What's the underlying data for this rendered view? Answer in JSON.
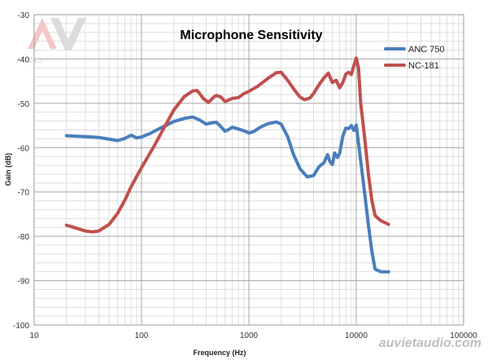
{
  "chart_data": {
    "type": "line",
    "title": "Microphone Sensitivity",
    "xlabel": "Frequency (Hz)",
    "ylabel": "Gain (dB)",
    "xscale": "log",
    "xlim": [
      10,
      100000
    ],
    "ylim": [
      -100,
      -30
    ],
    "xticks": [
      10,
      100,
      1000,
      10000,
      100000
    ],
    "xtick_labels": [
      "10",
      "100",
      "1000",
      "10000",
      "100000"
    ],
    "yticks": [
      -30,
      -40,
      -50,
      -60,
      -70,
      -80,
      -90,
      -100
    ],
    "ytick_labels": [
      "-30",
      "-40",
      "-50",
      "-60",
      "-70",
      "-80",
      "-90",
      "-100"
    ],
    "grid": true,
    "legend_position": "top-right",
    "series": [
      {
        "name": "ANC 750",
        "color": "#4a7ebb",
        "points": [
          [
            20,
            -57.3
          ],
          [
            30,
            -57.5
          ],
          [
            40,
            -57.7
          ],
          [
            50,
            -58.1
          ],
          [
            60,
            -58.4
          ],
          [
            70,
            -57.9
          ],
          [
            80,
            -57.2
          ],
          [
            90,
            -57.8
          ],
          [
            100,
            -57.6
          ],
          [
            120,
            -56.8
          ],
          [
            150,
            -55.6
          ],
          [
            200,
            -54.1
          ],
          [
            250,
            -53.4
          ],
          [
            300,
            -53.1
          ],
          [
            350,
            -53.8
          ],
          [
            400,
            -54.7
          ],
          [
            450,
            -54.4
          ],
          [
            500,
            -54.3
          ],
          [
            550,
            -55.3
          ],
          [
            600,
            -56.3
          ],
          [
            650,
            -55.9
          ],
          [
            700,
            -55.4
          ],
          [
            800,
            -55.8
          ],
          [
            900,
            -56.2
          ],
          [
            1000,
            -56.7
          ],
          [
            1100,
            -56.4
          ],
          [
            1300,
            -55.3
          ],
          [
            1500,
            -54.6
          ],
          [
            1800,
            -54.2
          ],
          [
            2000,
            -54.7
          ],
          [
            2300,
            -57.5
          ],
          [
            2600,
            -61.5
          ],
          [
            3000,
            -64.8
          ],
          [
            3500,
            -66.6
          ],
          [
            4000,
            -66.3
          ],
          [
            4500,
            -64.3
          ],
          [
            5000,
            -63.4
          ],
          [
            5400,
            -61.6
          ],
          [
            5700,
            -63.2
          ],
          [
            6000,
            -63.8
          ],
          [
            6300,
            -61.2
          ],
          [
            6700,
            -62.2
          ],
          [
            7000,
            -61.3
          ],
          [
            7500,
            -57.4
          ],
          [
            8000,
            -55.6
          ],
          [
            8500,
            -55.7
          ],
          [
            9000,
            -55.0
          ],
          [
            9500,
            -56.1
          ],
          [
            10000,
            -54.9
          ],
          [
            11000,
            -63
          ],
          [
            12000,
            -70.5
          ],
          [
            13000,
            -77.5
          ],
          [
            14000,
            -83.5
          ],
          [
            15000,
            -87.4
          ],
          [
            17000,
            -88.0
          ],
          [
            20000,
            -88.0
          ]
        ]
      },
      {
        "name": "NC-181",
        "color": "#c0504d",
        "points": [
          [
            20,
            -77.5
          ],
          [
            25,
            -78.2
          ],
          [
            30,
            -78.8
          ],
          [
            35,
            -79.0
          ],
          [
            40,
            -78.8
          ],
          [
            50,
            -77.3
          ],
          [
            60,
            -74.8
          ],
          [
            70,
            -71.8
          ],
          [
            80,
            -68.8
          ],
          [
            100,
            -64.5
          ],
          [
            130,
            -59.8
          ],
          [
            160,
            -55.8
          ],
          [
            200,
            -51.5
          ],
          [
            250,
            -48.5
          ],
          [
            300,
            -47.2
          ],
          [
            330,
            -47.1
          ],
          [
            380,
            -49.0
          ],
          [
            420,
            -49.8
          ],
          [
            470,
            -48.6
          ],
          [
            500,
            -48.2
          ],
          [
            550,
            -48.6
          ],
          [
            600,
            -49.6
          ],
          [
            700,
            -48.9
          ],
          [
            800,
            -48.7
          ],
          [
            900,
            -47.8
          ],
          [
            1000,
            -47.3
          ],
          [
            1200,
            -46.2
          ],
          [
            1500,
            -44.4
          ],
          [
            1800,
            -43.1
          ],
          [
            2000,
            -43.0
          ],
          [
            2300,
            -44.8
          ],
          [
            2700,
            -47.2
          ],
          [
            3000,
            -48.6
          ],
          [
            3300,
            -49.2
          ],
          [
            3700,
            -48.8
          ],
          [
            4000,
            -47.8
          ],
          [
            4500,
            -45.8
          ],
          [
            5000,
            -44.3
          ],
          [
            5500,
            -43.2
          ],
          [
            6000,
            -45.3
          ],
          [
            6500,
            -44.8
          ],
          [
            7000,
            -46.5
          ],
          [
            7500,
            -45.3
          ],
          [
            8000,
            -43.4
          ],
          [
            8500,
            -43.0
          ],
          [
            9000,
            -43.5
          ],
          [
            9500,
            -41.5
          ],
          [
            10000,
            -39.8
          ],
          [
            10500,
            -42
          ],
          [
            11000,
            -50
          ],
          [
            12000,
            -58
          ],
          [
            13000,
            -66
          ],
          [
            14000,
            -72
          ],
          [
            15000,
            -75.3
          ],
          [
            17000,
            -76.5
          ],
          [
            20000,
            -77.3
          ]
        ]
      }
    ]
  },
  "watermark": {
    "logo_letters": "AV",
    "logo_caption": "AUDIO",
    "site": "auvietaudio.com"
  }
}
